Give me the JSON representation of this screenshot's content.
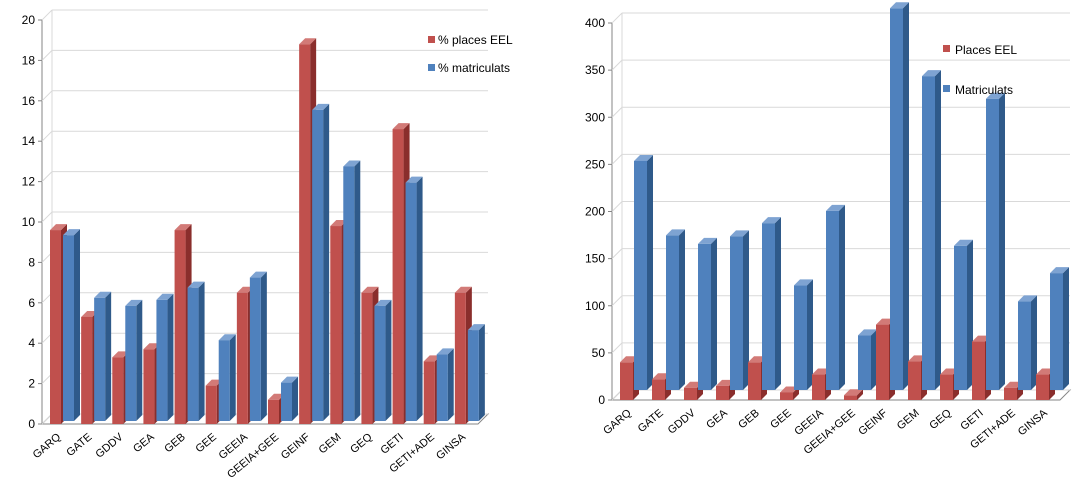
{
  "colors": {
    "red": "#c0504d",
    "red_side": "#8a2e2c",
    "red_top": "#d27a77",
    "blue": "#4f81bd",
    "blue_side": "#2f5a8a",
    "blue_top": "#7ea3d2",
    "grid": "#d9d9d9",
    "axis": "#868686"
  },
  "chart_data": [
    {
      "type": "bar",
      "categories": [
        "GARQ",
        "GATE",
        "GDDV",
        "GEA",
        "GEB",
        "GEE",
        "GEEIA",
        "GEEIA+GEE",
        "GEINF",
        "GEM",
        "GEQ",
        "GETI",
        "GETI+ADE",
        "GINSA"
      ],
      "series": [
        {
          "name": "% places EEL",
          "values": [
            9.6,
            5.3,
            3.3,
            3.7,
            9.6,
            1.9,
            6.5,
            1.2,
            18.8,
            9.8,
            6.5,
            14.6,
            3.1,
            6.5
          ]
        },
        {
          "name": "% matriculats",
          "values": [
            9.2,
            6.1,
            5.7,
            6.0,
            6.6,
            4.0,
            7.1,
            1.9,
            15.4,
            12.6,
            5.7,
            11.8,
            3.3,
            4.5
          ]
        }
      ],
      "yticks": [
        "0",
        "2",
        "4",
        "6",
        "8",
        "10",
        "12",
        "14",
        "16",
        "18",
        "20"
      ],
      "ylim": [
        0,
        20
      ],
      "legend": "top-right",
      "grid": true
    },
    {
      "type": "bar",
      "categories": [
        "GARQ",
        "GATE",
        "GDDV",
        "GEA",
        "GEB",
        "GEE",
        "GEEIA",
        "GEEIA+GEE",
        "GEINF",
        "GEM",
        "GEQ",
        "GETI",
        "GETI+ADE",
        "GINSA"
      ],
      "series": [
        {
          "name": "Places EEL",
          "values": [
            40,
            22,
            13,
            15,
            40,
            8,
            27,
            5,
            80,
            41,
            27,
            62,
            13,
            27
          ]
        },
        {
          "name": "Matriculats",
          "values": [
            243,
            164,
            155,
            163,
            177,
            111,
            190,
            58,
            405,
            333,
            153,
            309,
            94,
            124
          ]
        }
      ],
      "yticks": [
        "0",
        "50",
        "100",
        "150",
        "200",
        "250",
        "300",
        "350",
        "400"
      ],
      "ylim": [
        0,
        400
      ],
      "legend": "top-right",
      "grid": true
    }
  ]
}
